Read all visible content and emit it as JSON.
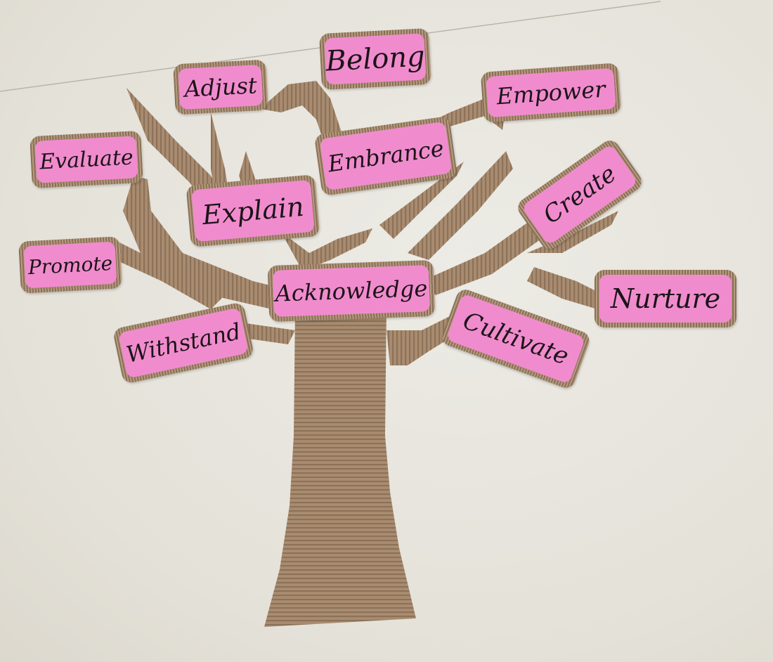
{
  "colors": {
    "wall": "#e7e4dc",
    "cardboard": "#a5876b",
    "cardboard_dark": "#7d6450",
    "pink": "#f08ccd",
    "ink": "#1c1418"
  },
  "words": {
    "belong": "Belong",
    "adjust": "Adjust",
    "empower": "Empower",
    "evaluate": "Evaluate",
    "embrance": "Embrance",
    "explain": "Explain",
    "create": "Create",
    "promote": "Promote",
    "acknowledge": "Acknowledge",
    "nurture": "Nurture",
    "withstand": "Withstand",
    "cultivate": "Cultivate"
  }
}
